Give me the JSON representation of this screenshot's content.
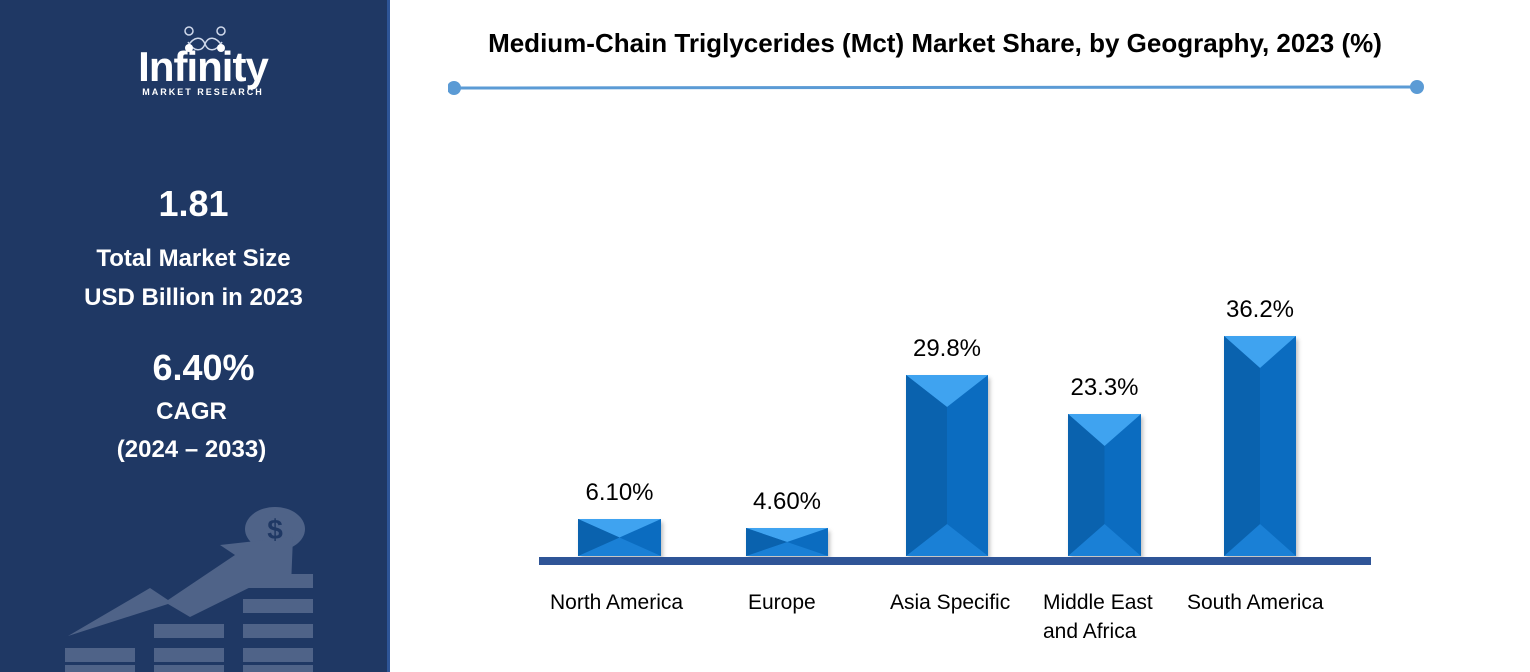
{
  "brand": {
    "name": "Infinity",
    "subtitle": "MARKET RESEARCH"
  },
  "sidebar": {
    "market_size_value": "1.81",
    "market_size_label_line1": "Total Market Size",
    "market_size_label_line2": "USD Billion in 2023",
    "cagr_value": "6.40%",
    "cagr_label": "CAGR",
    "cagr_period": "(2024 – 2033)"
  },
  "colors": {
    "sidebar_bg": "#1f3864",
    "bar_fill": "#0b6cc0",
    "bar_highlight": "#3fa3f0",
    "axis_line": "#2f5597",
    "title_rule": "#5b9bd5"
  },
  "chart_data": {
    "type": "bar",
    "title": "Medium-Chain Triglycerides (Mct) Market Share, by Geography, 2023 (%)",
    "categories": [
      "North America",
      "Europe",
      "Asia Specific",
      "Middle East and Africa",
      "South America"
    ],
    "category_lines": [
      [
        "North America"
      ],
      [
        "Europe"
      ],
      [
        "Asia Specific"
      ],
      [
        "Middle East",
        "and Africa"
      ],
      [
        "South America"
      ]
    ],
    "values": [
      6.1,
      4.6,
      29.8,
      23.3,
      36.2
    ],
    "value_labels": [
      "6.10%",
      "4.60%",
      "29.8%",
      "23.3%",
      "36.2%"
    ],
    "xlabel": "",
    "ylabel": "",
    "ylim": [
      0,
      40
    ],
    "grid": false,
    "legend": "none"
  }
}
